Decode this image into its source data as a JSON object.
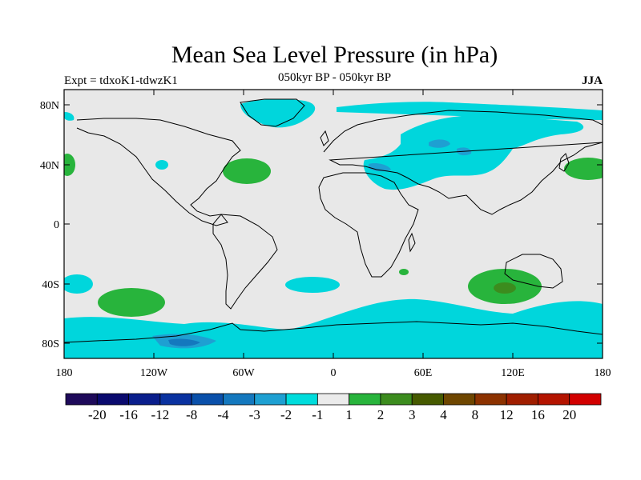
{
  "title": "Mean Sea Level Pressure (in hPa)",
  "experiment_label": "Expt = tdxoK1-tdwzK1",
  "period_label": "050kyr BP - 050kyr BP",
  "season_label": "JJA",
  "map": {
    "projection": "cylindrical-equidistant",
    "lon_ticks": [
      "180",
      "120W",
      "60W",
      "0",
      "60E",
      "120E",
      "180"
    ],
    "lat_ticks": [
      "80N",
      "40N",
      "0",
      "40S",
      "80S"
    ],
    "land_color": "#ebebeb",
    "coastline_color": "#000000"
  },
  "colorbar": {
    "labels": [
      "-20",
      "-16",
      "-12",
      "-8",
      "-4",
      "-3",
      "-2",
      "-1",
      "1",
      "2",
      "3",
      "4",
      "8",
      "12",
      "16",
      "20"
    ],
    "colors": [
      "#1e0a5a",
      "#0a0a6e",
      "#0a1e8c",
      "#0a32a0",
      "#0a50aa",
      "#1478be",
      "#1ea0d2",
      "#00dcdc",
      "#ebebeb",
      "#28b43c",
      "#3c8c1e",
      "#465a00",
      "#6e4600",
      "#8c3200",
      "#a01e00",
      "#b41400",
      "#d20000"
    ]
  }
}
